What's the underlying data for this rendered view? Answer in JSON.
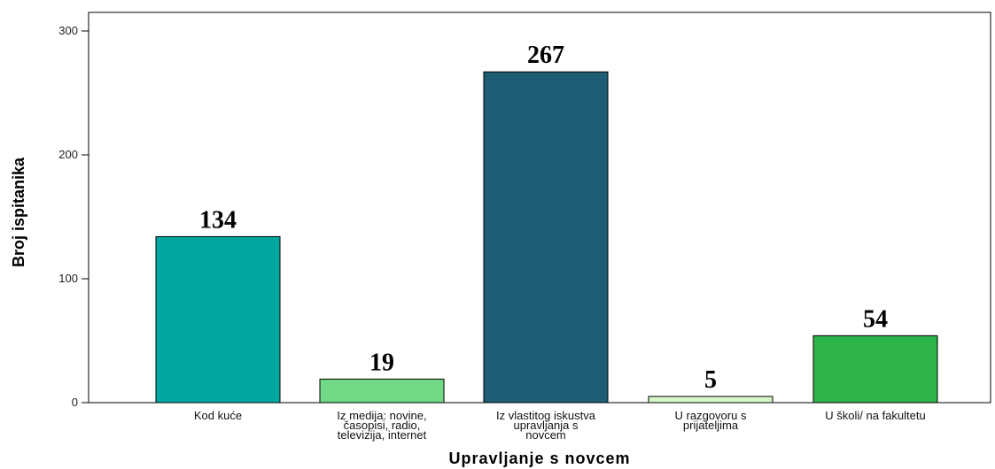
{
  "chart_data": {
    "type": "bar",
    "categories": [
      "Kod kuće",
      "Iz medija: novine, časopisi, radio, televizija, internet",
      "Iz vlastitog iskustva upravljanja s novcem",
      "U razgovoru s prijateljima",
      "U školi/ na fakultetu"
    ],
    "category_lines": [
      [
        "Kod kuće"
      ],
      [
        "Iz medija: novine,",
        "časopisi, radio,",
        "televizija, internet"
      ],
      [
        "Iz vlastitog iskustva",
        "upravljanja s",
        "novcem"
      ],
      [
        "U razgovoru s",
        "prijateljima"
      ],
      [
        "U školi/ na fakultetu"
      ]
    ],
    "values": [
      134,
      19,
      267,
      5,
      54
    ],
    "value_labels": [
      "134",
      "19",
      "267",
      "5",
      "54"
    ],
    "colors": [
      "#00a6a0",
      "#6fd985",
      "#1d5e75",
      "#d8f7c8",
      "#2db54a"
    ],
    "title": "",
    "xlabel": "Upravljanje s novcem",
    "ylabel": "Broj ispitanika",
    "ylim": [
      0,
      300
    ],
    "yticks": [
      0,
      100,
      200,
      300
    ],
    "grid": false,
    "legend": "none"
  }
}
